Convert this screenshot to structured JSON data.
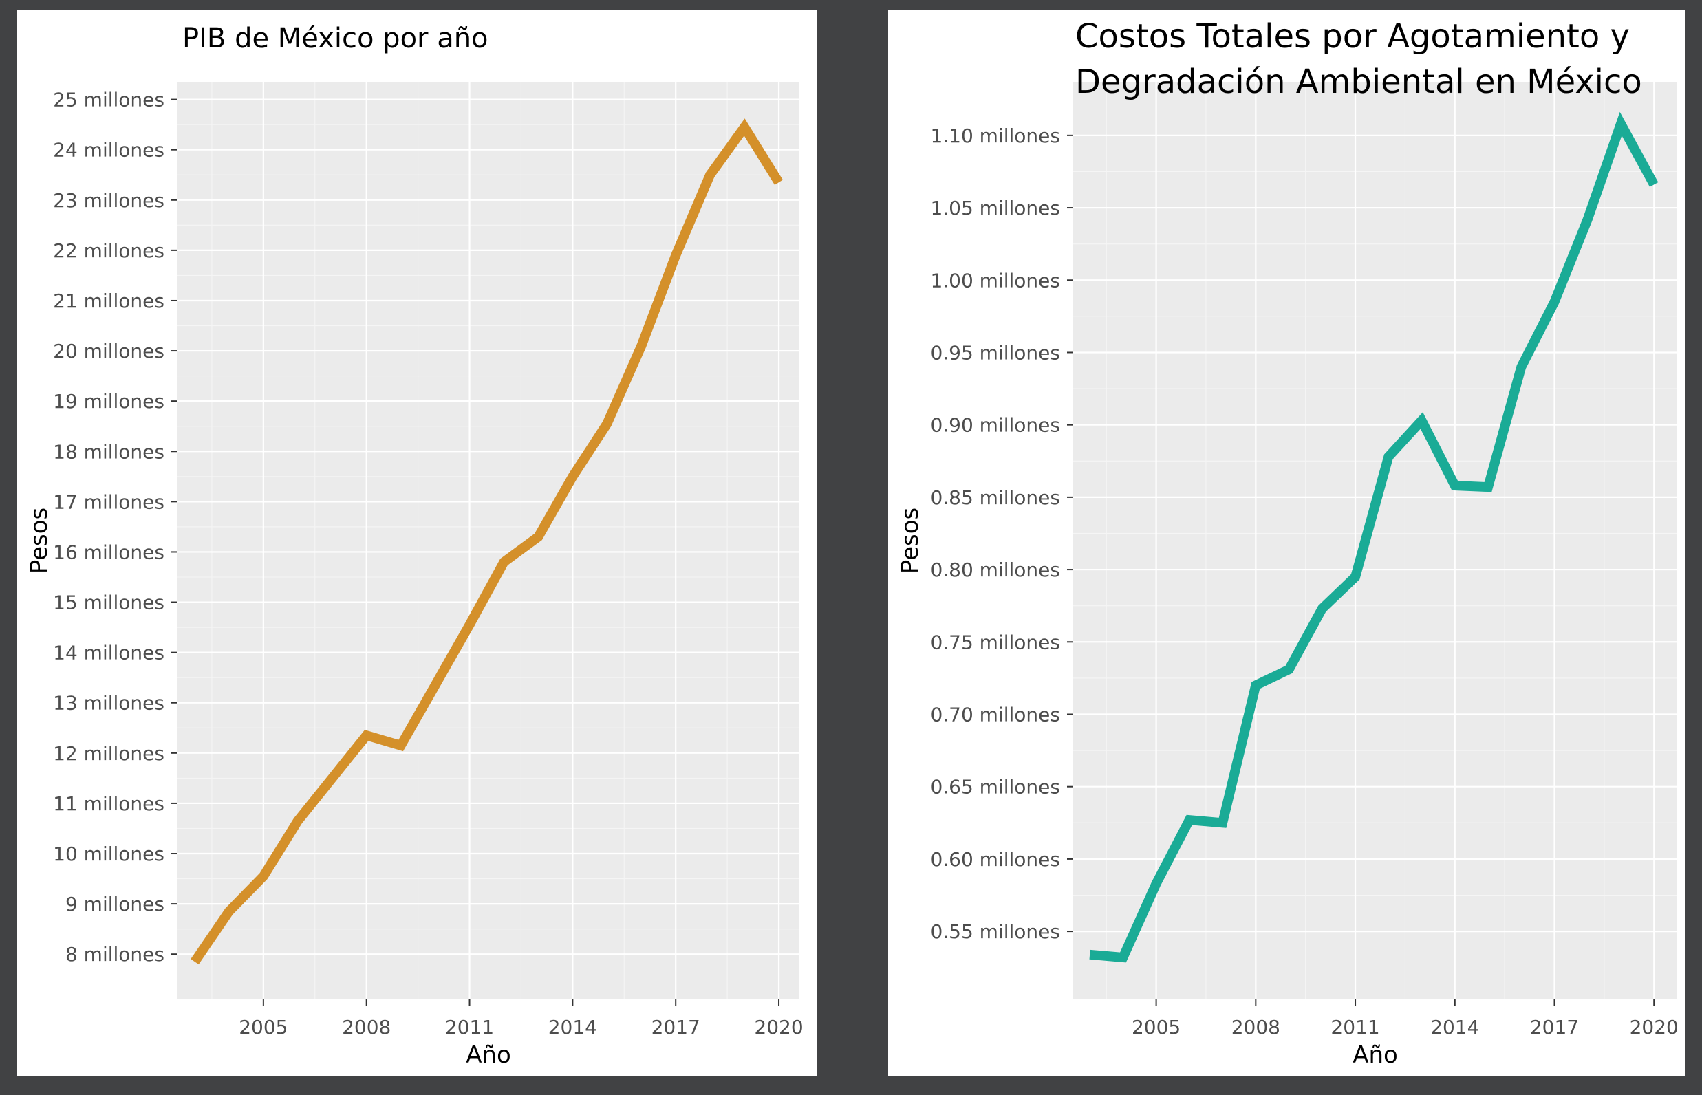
{
  "charts": [
    {
      "id": "pib",
      "chart_data": {
        "type": "line",
        "title": [
          "PIB de México por año"
        ],
        "xlabel": "Año",
        "ylabel": "Pesos",
        "x": [
          2003,
          2004,
          2005,
          2006,
          2007,
          2008,
          2009,
          2010,
          2011,
          2012,
          2013,
          2014,
          2015,
          2016,
          2017,
          2018,
          2019,
          2020
        ],
        "values": [
          7.85,
          8.85,
          9.55,
          10.65,
          11.5,
          12.35,
          12.15,
          13.35,
          14.55,
          15.8,
          16.3,
          17.5,
          18.55,
          20.1,
          21.9,
          23.5,
          24.45,
          23.35
        ],
        "xlim": [
          2002.5,
          2020.6
        ],
        "ylim": [
          7.1,
          25.35
        ],
        "xticks": [
          2005,
          2008,
          2011,
          2014,
          2017,
          2020
        ],
        "yticks": [
          8,
          9,
          10,
          11,
          12,
          13,
          14,
          15,
          16,
          17,
          18,
          19,
          20,
          21,
          22,
          23,
          24,
          25
        ],
        "ytick_labels": [
          "8 millones",
          "9 millones",
          "10 millones",
          "11 millones",
          "12 millones",
          "13 millones",
          "14 millones",
          "15 millones",
          "16 millones",
          "17 millones",
          "18 millones",
          "19 millones",
          "20 millones",
          "21 millones",
          "22 millones",
          "23 millones",
          "24 millones",
          "25 millones"
        ],
        "grid": true,
        "color": "#d4902a"
      }
    },
    {
      "id": "costos",
      "chart_data": {
        "type": "line",
        "title": [
          "Costos Totales por Agotamiento y",
          "Degradación Ambiental en México"
        ],
        "xlabel": "Año",
        "ylabel": "Pesos",
        "x": [
          2003,
          2004,
          2005,
          2006,
          2007,
          2008,
          2009,
          2010,
          2011,
          2012,
          2013,
          2014,
          2015,
          2016,
          2017,
          2018,
          2019,
          2020
        ],
        "values": [
          0.534,
          0.532,
          0.583,
          0.627,
          0.625,
          0.72,
          0.731,
          0.773,
          0.795,
          0.878,
          0.903,
          0.858,
          0.857,
          0.94,
          0.985,
          1.042,
          1.108,
          1.066
        ],
        "xlim": [
          2002.5,
          2020.7
        ],
        "ylim": [
          0.503,
          1.137
        ],
        "xticks": [
          2005,
          2008,
          2011,
          2014,
          2017,
          2020
        ],
        "yticks": [
          0.55,
          0.6,
          0.65,
          0.7,
          0.75,
          0.8,
          0.85,
          0.9,
          0.95,
          1.0,
          1.05,
          1.1
        ],
        "ytick_labels": [
          "0.55 millones",
          "0.60 millones",
          "0.65 millones",
          "0.70 millones",
          "0.75 millones",
          "0.80 millones",
          "0.85 millones",
          "0.90 millones",
          "0.95 millones",
          "1.00 millones",
          "1.05 millones",
          "1.10 millones"
        ],
        "grid": true,
        "color": "#1aab96"
      }
    }
  ]
}
